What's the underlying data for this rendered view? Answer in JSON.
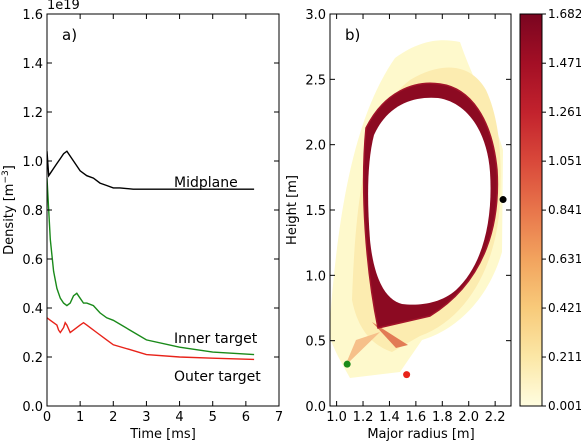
{
  "chart_data": [
    {
      "type": "line",
      "panel_label": "a)",
      "xlabel": "Time [ms]",
      "ylabel": "Density [m",
      "ylabel_sup": "−3",
      "ylabel_end": "]",
      "multiplier": "1e19",
      "xlim": [
        0,
        7
      ],
      "ylim": [
        0,
        1.6
      ],
      "xticks": [
        "0",
        "1",
        "2",
        "3",
        "4",
        "5",
        "6",
        "7"
      ],
      "yticks": [
        "0.0",
        "0.2",
        "0.4",
        "0.6",
        "0.8",
        "1.0",
        "1.2",
        "1.4",
        "1.6"
      ],
      "series": [
        {
          "name": "Midplane",
          "color": "#000000",
          "x": [
            0,
            0.05,
            0.1,
            0.2,
            0.3,
            0.4,
            0.5,
            0.6,
            0.7,
            0.8,
            0.9,
            1.0,
            1.1,
            1.2,
            1.4,
            1.6,
            1.8,
            2.0,
            2.2,
            2.6,
            3.0,
            4.0,
            5.0,
            6.25
          ],
          "y": [
            1.04,
            0.94,
            0.95,
            0.97,
            0.99,
            1.01,
            1.03,
            1.04,
            1.02,
            1.0,
            0.98,
            0.96,
            0.95,
            0.94,
            0.93,
            0.91,
            0.9,
            0.89,
            0.89,
            0.885,
            0.885,
            0.885,
            0.885,
            0.885
          ]
        },
        {
          "name": "Inner target",
          "color": "#1a8a1a",
          "x": [
            0,
            0.05,
            0.1,
            0.2,
            0.3,
            0.4,
            0.5,
            0.6,
            0.7,
            0.8,
            0.9,
            1.0,
            1.1,
            1.2,
            1.4,
            1.6,
            1.8,
            2.0,
            2.5,
            3.0,
            4.0,
            5.0,
            6.25
          ],
          "y": [
            0.93,
            0.8,
            0.68,
            0.55,
            0.48,
            0.44,
            0.42,
            0.41,
            0.42,
            0.45,
            0.46,
            0.44,
            0.42,
            0.42,
            0.41,
            0.38,
            0.36,
            0.35,
            0.31,
            0.27,
            0.24,
            0.22,
            0.21
          ]
        },
        {
          "name": "Outer target",
          "color": "#e8231a",
          "x": [
            0,
            0.1,
            0.2,
            0.3,
            0.35,
            0.4,
            0.5,
            0.55,
            0.6,
            0.7,
            0.8,
            0.9,
            1.0,
            1.1,
            1.2,
            1.3,
            1.5,
            1.8,
            2.0,
            2.5,
            3.0,
            4.0,
            5.0,
            6.25
          ],
          "y": [
            0.36,
            0.35,
            0.34,
            0.33,
            0.31,
            0.3,
            0.32,
            0.34,
            0.33,
            0.3,
            0.31,
            0.32,
            0.33,
            0.34,
            0.33,
            0.32,
            0.3,
            0.27,
            0.25,
            0.23,
            0.21,
            0.2,
            0.195,
            0.19
          ]
        }
      ]
    },
    {
      "type": "heatmap",
      "panel_label": "b)",
      "xlabel": "Major radius [m]",
      "ylabel": "Height [m]",
      "xlim": [
        0.95,
        2.32
      ],
      "ylim": [
        0,
        3.0
      ],
      "xticks": [
        "1.0",
        "1.2",
        "1.4",
        "1.6",
        "1.8",
        "2.0",
        "2.2"
      ],
      "yticks": [
        "0.0",
        "0.5",
        "1.0",
        "1.5",
        "2.0",
        "2.5",
        "3.0"
      ],
      "colorbar": {
        "min": 0.001,
        "max": 1.682,
        "ticks": [
          "0.001",
          "0.211",
          "0.421",
          "0.631",
          "0.841",
          "1.051",
          "1.261",
          "1.471",
          "1.682"
        ],
        "colors": [
          "#fffde0",
          "#fbe7a6",
          "#f8ca7a",
          "#f2a35e",
          "#e8754b",
          "#d9483a",
          "#c2222d",
          "#a30f25",
          "#7a0520"
        ]
      },
      "points": [
        {
          "name": "midplane-point",
          "r": 2.26,
          "z": 1.58,
          "color": "#000000"
        },
        {
          "name": "inner-target-point",
          "r": 1.08,
          "z": 0.32,
          "color": "#1a8a1a"
        },
        {
          "name": "outer-target-point",
          "r": 1.53,
          "z": 0.24,
          "color": "#e8231a"
        }
      ]
    }
  ]
}
